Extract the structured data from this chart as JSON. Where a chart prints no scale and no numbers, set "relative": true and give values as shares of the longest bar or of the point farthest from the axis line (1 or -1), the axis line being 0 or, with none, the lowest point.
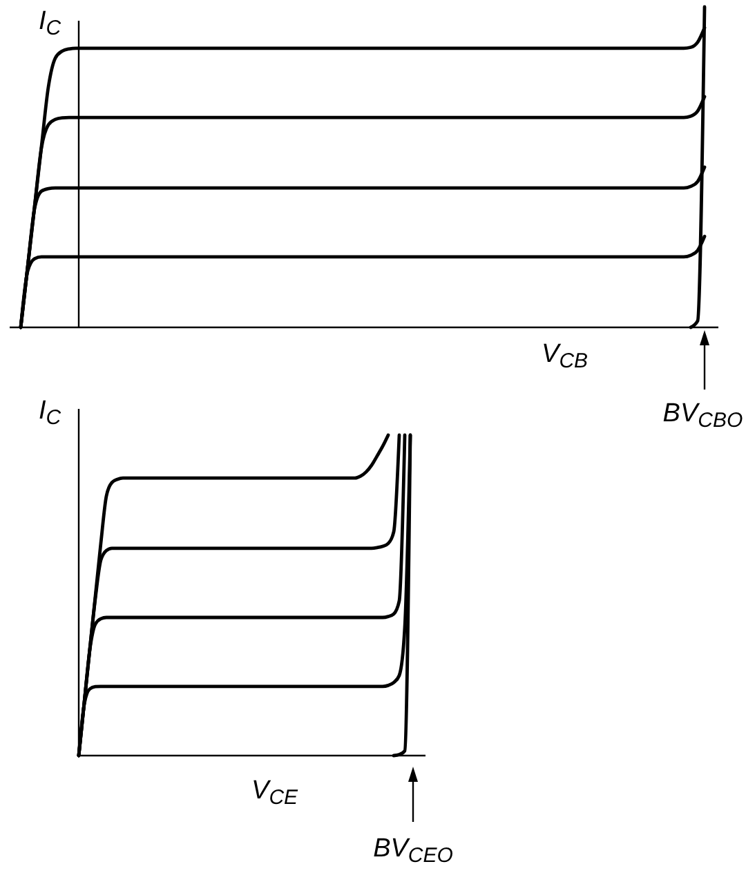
{
  "chart_data": [
    {
      "type": "line",
      "relative": true,
      "xlabel": "V$_{CB}$",
      "ylabel": "I$_{C}$",
      "tick_labels": false,
      "annotations": [
        "BV$_{CBO}$"
      ],
      "categories": [
        null,
        null,
        null,
        null,
        null,
        null,
        null,
        null,
        null,
        null,
        null,
        null,
        null,
        null,
        null,
        null,
        null,
        null,
        null,
        null,
        null,
        null,
        null,
        null,
        null,
        null,
        null,
        null,
        null,
        null,
        null,
        null,
        null,
        null,
        null,
        null,
        null,
        null,
        null,
        null,
        null,
        null,
        null,
        null,
        null,
        null,
        null,
        null,
        null,
        null,
        null,
        null,
        null,
        null,
        null,
        null,
        null,
        null,
        null,
        null,
        null,
        null,
        null,
        null,
        null,
        null,
        null,
        null,
        null,
        null,
        null,
        null,
        null,
        null,
        null,
        null,
        null,
        null,
        null,
        null,
        null,
        null,
        null,
        null,
        null,
        null,
        null,
        null,
        null,
        null,
        null,
        null,
        null,
        null,
        null,
        null,
        null,
        null,
        null,
        null
      ],
      "series": [
        {
          "color": "#000000",
          "values": [
            0,
            0.188,
            0.376,
            0.564,
            0.75,
            0.84,
            0.862,
            0.869,
            0.871,
            0.871,
            0.871,
            0.871,
            0.871,
            0.871,
            0.871,
            0.871,
            0.871,
            0.871,
            0.871,
            0.871,
            0.871,
            0.871,
            0.871,
            0.871,
            0.871,
            0.871,
            0.871,
            0.871,
            0.871,
            0.871,
            0.871,
            0.871,
            0.871,
            0.871,
            0.871,
            0.871,
            0.871,
            0.871,
            0.871,
            0.871,
            0.871,
            0.871,
            0.871,
            0.871,
            0.871,
            0.871,
            0.871,
            0.871,
            0.871,
            0.871,
            0.871,
            0.871,
            0.871,
            0.871,
            0.871,
            0.871,
            0.871,
            0.871,
            0.871,
            0.871,
            0.871,
            0.871,
            0.871,
            0.871,
            0.871,
            0.871,
            0.871,
            0.871,
            0.871,
            0.871,
            0.871,
            0.871,
            0.871,
            0.871,
            0.871,
            0.871,
            0.871,
            0.871,
            0.871,
            0.871,
            0.871,
            0.871,
            0.871,
            0.871,
            0.871,
            0.871,
            0.871,
            0.871,
            0.871,
            0.871,
            0.871,
            0.871,
            0.871,
            0.871,
            0.871,
            0.871,
            0.871,
            0.874,
            0.89,
            0.935
          ]
        },
        {
          "color": "#000000",
          "values": [
            0,
            0.188,
            0.376,
            0.56,
            0.632,
            0.649,
            0.654,
            0.655,
            0.655,
            0.655,
            0.655,
            0.655,
            0.655,
            0.655,
            0.655,
            0.655,
            0.655,
            0.655,
            0.655,
            0.655,
            0.655,
            0.655,
            0.655,
            0.655,
            0.655,
            0.655,
            0.655,
            0.655,
            0.655,
            0.655,
            0.655,
            0.655,
            0.655,
            0.655,
            0.655,
            0.655,
            0.655,
            0.655,
            0.655,
            0.655,
            0.655,
            0.655,
            0.655,
            0.655,
            0.655,
            0.655,
            0.655,
            0.655,
            0.655,
            0.655,
            0.655,
            0.655,
            0.655,
            0.655,
            0.655,
            0.655,
            0.655,
            0.655,
            0.655,
            0.655,
            0.655,
            0.655,
            0.655,
            0.655,
            0.655,
            0.655,
            0.655,
            0.655,
            0.655,
            0.655,
            0.655,
            0.655,
            0.655,
            0.655,
            0.655,
            0.655,
            0.655,
            0.655,
            0.655,
            0.655,
            0.655,
            0.655,
            0.655,
            0.655,
            0.655,
            0.655,
            0.655,
            0.655,
            0.655,
            0.655,
            0.655,
            0.655,
            0.655,
            0.655,
            0.655,
            0.655,
            0.655,
            0.659,
            0.675,
            0.72
          ]
        },
        {
          "color": "#000000",
          "values": [
            0,
            0.188,
            0.37,
            0.425,
            0.433,
            0.435,
            0.435,
            0.435,
            0.435,
            0.435,
            0.435,
            0.435,
            0.435,
            0.435,
            0.435,
            0.435,
            0.435,
            0.435,
            0.435,
            0.435,
            0.435,
            0.435,
            0.435,
            0.435,
            0.435,
            0.435,
            0.435,
            0.435,
            0.435,
            0.435,
            0.435,
            0.435,
            0.435,
            0.435,
            0.435,
            0.435,
            0.435,
            0.435,
            0.435,
            0.435,
            0.435,
            0.435,
            0.435,
            0.435,
            0.435,
            0.435,
            0.435,
            0.435,
            0.435,
            0.435,
            0.435,
            0.435,
            0.435,
            0.435,
            0.435,
            0.435,
            0.435,
            0.435,
            0.435,
            0.435,
            0.435,
            0.435,
            0.435,
            0.435,
            0.435,
            0.435,
            0.435,
            0.435,
            0.435,
            0.435,
            0.435,
            0.435,
            0.435,
            0.435,
            0.435,
            0.435,
            0.435,
            0.435,
            0.435,
            0.435,
            0.435,
            0.435,
            0.435,
            0.435,
            0.435,
            0.435,
            0.435,
            0.435,
            0.435,
            0.435,
            0.435,
            0.435,
            0.435,
            0.435,
            0.435,
            0.435,
            0.435,
            0.44,
            0.455,
            0.5
          ]
        },
        {
          "color": "#000000",
          "values": [
            0,
            0.175,
            0.214,
            0.22,
            0.22,
            0.22,
            0.22,
            0.22,
            0.22,
            0.22,
            0.22,
            0.22,
            0.22,
            0.22,
            0.22,
            0.22,
            0.22,
            0.22,
            0.22,
            0.22,
            0.22,
            0.22,
            0.22,
            0.22,
            0.22,
            0.22,
            0.22,
            0.22,
            0.22,
            0.22,
            0.22,
            0.22,
            0.22,
            0.22,
            0.22,
            0.22,
            0.22,
            0.22,
            0.22,
            0.22,
            0.22,
            0.22,
            0.22,
            0.22,
            0.22,
            0.22,
            0.22,
            0.22,
            0.22,
            0.22,
            0.22,
            0.22,
            0.22,
            0.22,
            0.22,
            0.22,
            0.22,
            0.22,
            0.22,
            0.22,
            0.22,
            0.22,
            0.22,
            0.22,
            0.22,
            0.22,
            0.22,
            0.22,
            0.22,
            0.22,
            0.22,
            0.22,
            0.22,
            0.22,
            0.22,
            0.22,
            0.22,
            0.22,
            0.22,
            0.22,
            0.22,
            0.22,
            0.22,
            0.22,
            0.22,
            0.22,
            0.22,
            0.22,
            0.22,
            0.22,
            0.22,
            0.22,
            0.22,
            0.22,
            0.22,
            0.22,
            0.22,
            0.225,
            0.24,
            0.284
          ]
        },
        {
          "color": "#000000",
          "values": [
            null,
            null,
            null,
            null,
            null,
            null,
            null,
            null,
            null,
            null,
            null,
            null,
            null,
            null,
            null,
            null,
            null,
            null,
            null,
            null,
            null,
            null,
            null,
            null,
            null,
            null,
            null,
            null,
            null,
            null,
            null,
            null,
            null,
            null,
            null,
            null,
            null,
            null,
            null,
            null,
            null,
            null,
            null,
            null,
            null,
            null,
            null,
            null,
            null,
            null,
            null,
            null,
            null,
            null,
            null,
            null,
            null,
            null,
            null,
            null,
            null,
            null,
            null,
            null,
            null,
            null,
            null,
            null,
            null,
            null,
            null,
            null,
            null,
            null,
            null,
            null,
            null,
            null,
            null,
            null,
            null,
            null,
            null,
            null,
            null,
            null,
            null,
            null,
            null,
            null,
            null,
            null,
            null,
            null,
            null,
            null,
            null,
            0,
            0.02,
            1
          ]
        }
      ]
    },
    {
      "type": "line",
      "relative": true,
      "xlabel": "V$_{CE}$",
      "ylabel": "I$_{C}$",
      "tick_labels": false,
      "annotations": [
        "BV$_{CEO}$"
      ],
      "categories": [
        null,
        null,
        null,
        null,
        null,
        null,
        null,
        null,
        null,
        null,
        null,
        null,
        null,
        null,
        null,
        null,
        null,
        null,
        null,
        null,
        null,
        null,
        null,
        null,
        null,
        null,
        null,
        null,
        null,
        null,
        null,
        null,
        null,
        null,
        null,
        null,
        null,
        null,
        null,
        null,
        null,
        null,
        null,
        null,
        null,
        null,
        null,
        null,
        null,
        null,
        null,
        null,
        null,
        null,
        null,
        null,
        null,
        null,
        null,
        null,
        null
      ],
      "series": [
        {
          "color": "#000000",
          "values": [
            0,
            0.166,
            0.332,
            0.497,
            0.663,
            0.81,
            0.852,
            0.862,
            0.866,
            0.866,
            0.866,
            0.866,
            0.866,
            0.866,
            0.866,
            0.866,
            0.866,
            0.866,
            0.866,
            0.866,
            0.866,
            0.866,
            0.866,
            0.866,
            0.866,
            0.866,
            0.866,
            0.866,
            0.866,
            0.866,
            0.866,
            0.866,
            0.866,
            0.866,
            0.866,
            0.866,
            0.866,
            0.866,
            0.866,
            0.866,
            0.866,
            0.866,
            0.866,
            0.866,
            0.866,
            0.866,
            0.866,
            0.866,
            0.866,
            0.866,
            0.866,
            0.872,
            0.885,
            0.906,
            0.935,
            0.965,
            1,
            null,
            null,
            null,
            null
          ]
        },
        {
          "color": "#000000",
          "values": [
            0,
            0.166,
            0.332,
            0.49,
            0.61,
            0.64,
            0.647,
            0.647,
            0.647,
            0.647,
            0.647,
            0.647,
            0.647,
            0.647,
            0.647,
            0.647,
            0.647,
            0.647,
            0.647,
            0.647,
            0.647,
            0.647,
            0.647,
            0.647,
            0.647,
            0.647,
            0.647,
            0.647,
            0.647,
            0.647,
            0.647,
            0.647,
            0.647,
            0.647,
            0.647,
            0.647,
            0.647,
            0.647,
            0.647,
            0.647,
            0.647,
            0.647,
            0.647,
            0.647,
            0.647,
            0.647,
            0.647,
            0.647,
            0.647,
            0.647,
            0.647,
            0.647,
            0.647,
            0.647,
            0.649,
            0.653,
            0.662,
            0.698,
            1,
            null,
            null
          ]
        },
        {
          "color": "#000000",
          "values": [
            0,
            0.166,
            0.33,
            0.41,
            0.427,
            0.431,
            0.431,
            0.431,
            0.431,
            0.431,
            0.431,
            0.431,
            0.431,
            0.431,
            0.431,
            0.431,
            0.431,
            0.431,
            0.431,
            0.431,
            0.431,
            0.431,
            0.431,
            0.431,
            0.431,
            0.431,
            0.431,
            0.431,
            0.431,
            0.431,
            0.431,
            0.431,
            0.431,
            0.431,
            0.431,
            0.431,
            0.431,
            0.431,
            0.431,
            0.431,
            0.431,
            0.431,
            0.431,
            0.431,
            0.431,
            0.431,
            0.431,
            0.431,
            0.431,
            0.431,
            0.431,
            0.431,
            0.431,
            0.431,
            0.431,
            0.431,
            0.434,
            0.442,
            0.483,
            1,
            null
          ]
        },
        {
          "color": "#000000",
          "values": [
            0,
            0.16,
            0.208,
            0.215,
            0.216,
            0.216,
            0.216,
            0.216,
            0.216,
            0.216,
            0.216,
            0.216,
            0.216,
            0.216,
            0.216,
            0.216,
            0.216,
            0.216,
            0.216,
            0.216,
            0.216,
            0.216,
            0.216,
            0.216,
            0.216,
            0.216,
            0.216,
            0.216,
            0.216,
            0.216,
            0.216,
            0.216,
            0.216,
            0.216,
            0.216,
            0.216,
            0.216,
            0.216,
            0.216,
            0.216,
            0.216,
            0.216,
            0.216,
            0.216,
            0.216,
            0.216,
            0.216,
            0.216,
            0.216,
            0.216,
            0.216,
            0.216,
            0.216,
            0.216,
            0.216,
            0.216,
            0.219,
            0.228,
            0.25,
            0.4,
            1
          ]
        },
        {
          "color": "#000000",
          "values": [
            null,
            null,
            null,
            null,
            null,
            null,
            null,
            null,
            null,
            null,
            null,
            null,
            null,
            null,
            null,
            null,
            null,
            null,
            null,
            null,
            null,
            null,
            null,
            null,
            null,
            null,
            null,
            null,
            null,
            null,
            null,
            null,
            null,
            null,
            null,
            null,
            null,
            null,
            null,
            null,
            null,
            null,
            null,
            null,
            null,
            null,
            null,
            null,
            null,
            null,
            null,
            null,
            null,
            null,
            null,
            null,
            null,
            0,
            0.003,
            0.015,
            1
          ]
        }
      ]
    }
  ]
}
